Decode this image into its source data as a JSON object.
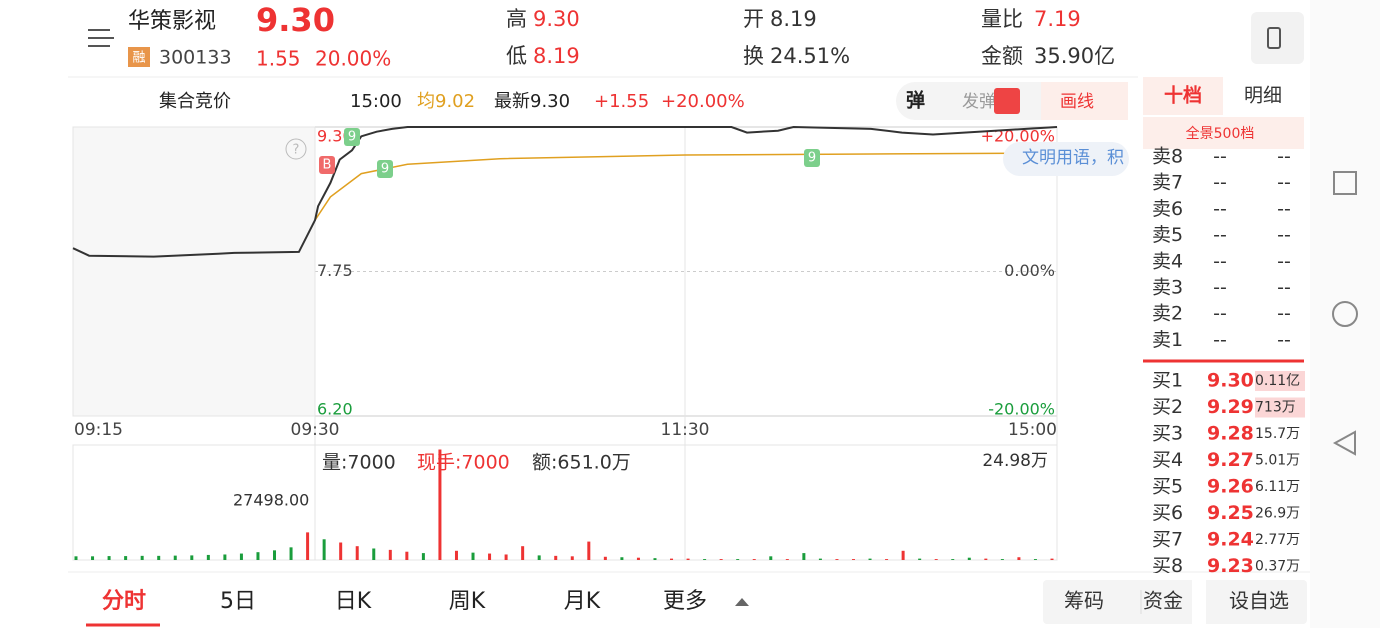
{
  "header": {
    "name": "华策影视",
    "price": "9.30",
    "badge": "融",
    "code": "300133",
    "change": "1.55",
    "change_pct": "20.00%",
    "high_label": "高",
    "high": "9.30",
    "low_label": "低",
    "low": "8.19",
    "open_label": "开",
    "open": "8.19",
    "turnover_label": "换",
    "turnover": "24.51%",
    "vol_ratio_label": "量比",
    "vol_ratio": "7.19",
    "amount_label": "金额",
    "amount": "35.90亿"
  },
  "info_bar": {
    "session": "集合竞价",
    "time": "15:00",
    "avg": "均9.02",
    "latest": "最新9.30",
    "change": "+1.55",
    "change_pct": "+20.00%",
    "danmu": "弹",
    "send": "发弹",
    "draw": "画线"
  },
  "order_tabs": {
    "level10": "十档",
    "detail": "明细",
    "full": "全景500档"
  },
  "order_book": {
    "sells": [
      [
        "卖8",
        "--",
        "--"
      ],
      [
        "卖7",
        "--",
        "--"
      ],
      [
        "卖6",
        "--",
        "--"
      ],
      [
        "卖5",
        "--",
        "--"
      ],
      [
        "卖4",
        "--",
        "--"
      ],
      [
        "卖3",
        "--",
        "--"
      ],
      [
        "卖2",
        "--",
        "--"
      ],
      [
        "卖1",
        "--",
        "--"
      ]
    ],
    "buys": [
      [
        "买1",
        "9.30",
        "0.11亿"
      ],
      [
        "买2",
        "9.29",
        "713万"
      ],
      [
        "买3",
        "9.28",
        "15.7万"
      ],
      [
        "买4",
        "9.27",
        "5.01万"
      ],
      [
        "买5",
        "9.26",
        "6.11万"
      ],
      [
        "买6",
        "9.25",
        "26.9万"
      ],
      [
        "买7",
        "9.24",
        "2.77万"
      ],
      [
        "买8",
        "9.23",
        "0.37万"
      ]
    ]
  },
  "chart": {
    "yticks": [
      {
        "value": 9.3,
        "label": "9.30"
      },
      7.75,
      {
        "value": 6.2,
        "label": "6.20"
      }
    ],
    "pct_ticks": [
      {
        "value": 20,
        "label": "+20.00%"
      },
      {
        "value": 0,
        "label": "0.00%"
      },
      {
        "value": -20,
        "label": "-20.00%"
      }
    ],
    "ylim": [
      6.2,
      9.3
    ],
    "xticks": [
      "09:15",
      "09:30",
      "11:30",
      "15:00"
    ],
    "price": {
      "color": "#333333",
      "x": [
        "09:15",
        "09:16",
        "09:20",
        "09:24",
        "09:25",
        "09:29",
        "09:30",
        "09:31",
        "09:35",
        "09:38",
        "09:42",
        "09:45",
        "09:50",
        "09:55",
        "10:00",
        "11:30",
        "13:15",
        "13:20",
        "13:30",
        "13:35",
        "14:00",
        "14:10",
        "14:20",
        "14:30",
        "14:40",
        "14:50",
        "15:00"
      ],
      "values": [
        8.0,
        7.92,
        7.91,
        7.94,
        7.95,
        7.96,
        8.3,
        8.45,
        8.7,
        8.95,
        9.05,
        9.2,
        9.25,
        9.28,
        9.3,
        9.3,
        9.3,
        9.24,
        9.26,
        9.3,
        9.28,
        9.24,
        9.22,
        9.24,
        9.26,
        9.28,
        9.3
      ]
    },
    "avg": {
      "color": "#e0a020",
      "x": [
        "09:30",
        "09:35",
        "09:45",
        "10:00",
        "10:30",
        "11:30",
        "14:00",
        "15:00"
      ],
      "values": [
        8.3,
        8.55,
        8.8,
        8.9,
        8.96,
        9.0,
        9.01,
        9.02
      ]
    },
    "markers": [
      "B",
      "9",
      "9",
      "9"
    ],
    "help": "?",
    "comment": "文明用语，积"
  },
  "volume": {
    "vol": "量:7000",
    "hand": "现手:7000",
    "amount": "额:651.0万",
    "max_label": "24.98万",
    "peak_label": "27498.00",
    "ymax": {
      "value": 249800,
      "label": "24.98万"
    },
    "values": [
      8000,
      8000,
      8500,
      8500,
      9000,
      9000,
      9500,
      10000,
      11000,
      12000,
      14000,
      17000,
      21000,
      27498,
      60000,
      45000,
      38000,
      30000,
      25000,
      22000,
      18000,
      15000,
      240000,
      20000,
      16000,
      14000,
      12000,
      30000,
      10000,
      9000,
      8000,
      40000,
      7000,
      6000,
      5000,
      4000,
      3000,
      3000,
      2000,
      2000,
      2000,
      2000,
      8000,
      2000,
      15000,
      3000,
      2000,
      2000,
      3000,
      2000,
      20000,
      3000,
      2000,
      2000,
      5000,
      3000,
      2000,
      6000,
      2000,
      3000
    ],
    "colors": [
      "g",
      "g",
      "g",
      "g",
      "g",
      "g",
      "g",
      "g",
      "g",
      "g",
      "g",
      "g",
      "g",
      "g",
      "r",
      "g",
      "r",
      "r",
      "g",
      "r",
      "r",
      "g",
      "r",
      "r",
      "g",
      "r",
      "r",
      "r",
      "g",
      "r",
      "r",
      "r",
      "r",
      "g",
      "r",
      "g",
      "r",
      "r",
      "g",
      "r",
      "g",
      "r",
      "g",
      "r",
      "g",
      "g",
      "r",
      "r",
      "g",
      "r",
      "r",
      "g",
      "r",
      "g",
      "g",
      "r",
      "g",
      "r",
      "g",
      "r"
    ]
  },
  "bottom_tabs": [
    "分时",
    "5日",
    "日K",
    "周K",
    "月K",
    "更多"
  ],
  "bottom_buttons": [
    "筹码",
    "资金",
    "设自选"
  ]
}
